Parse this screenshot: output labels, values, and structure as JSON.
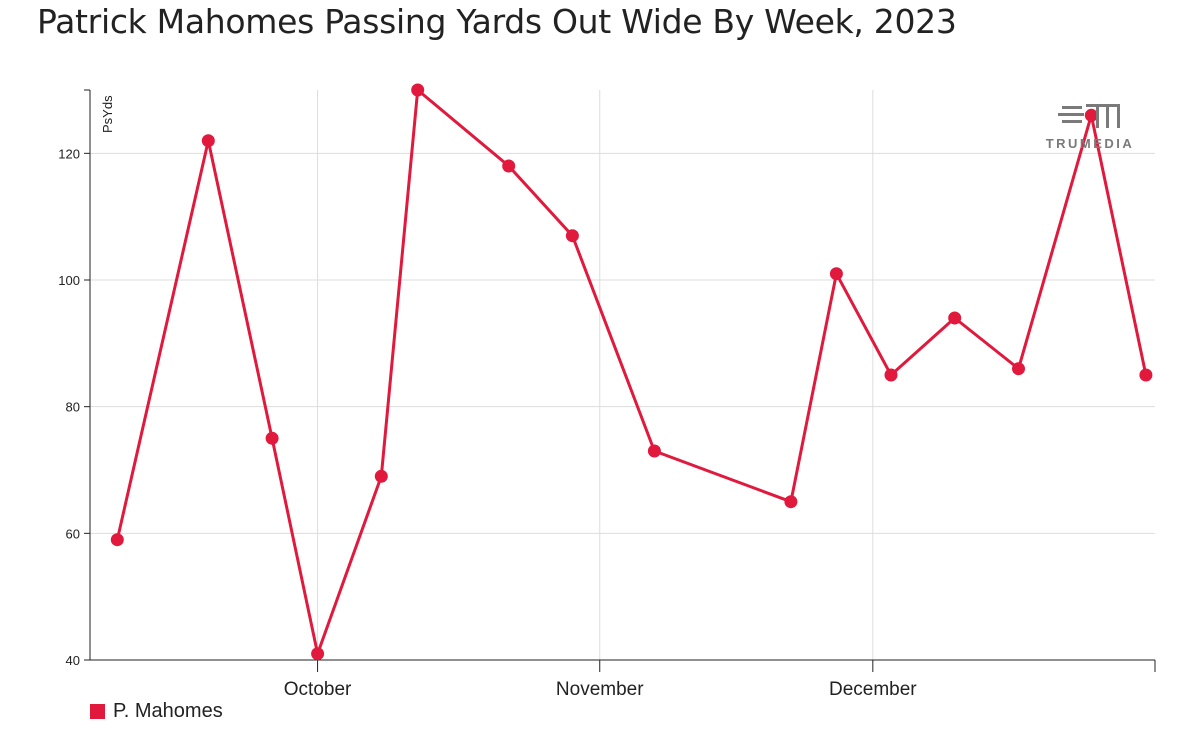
{
  "title": "Patrick Mahomes Passing Yards Out Wide By Week, 2023",
  "logo": {
    "text": "TRUMEDIA",
    "icon": "trumedia-logo-icon"
  },
  "legend": {
    "label": "P. Mahomes",
    "color": "#e0193d"
  },
  "colors": {
    "line": "#e0193d",
    "grid": "#dddddd",
    "axis": "#222222"
  },
  "chart_data": {
    "type": "line",
    "title": "Patrick Mahomes Passing Yards Out Wide By Week, 2023",
    "ylabel": "PsYds",
    "xlabel": "",
    "ylim": [
      40,
      130
    ],
    "xlim": [
      "2023-09-06",
      "2024-01-01"
    ],
    "yticks": [
      40,
      60,
      80,
      100,
      120
    ],
    "xticks": [
      {
        "label": "October",
        "date": "2023-10-01"
      },
      {
        "label": "November",
        "date": "2023-11-01"
      },
      {
        "label": "December",
        "date": "2023-12-01"
      }
    ],
    "grid": true,
    "legend_position": "bottom-left",
    "series": [
      {
        "name": "P. Mahomes",
        "x": [
          "2023-09-09",
          "2023-09-19",
          "2023-09-26",
          "2023-10-01",
          "2023-10-08",
          "2023-10-12",
          "2023-10-22",
          "2023-10-29",
          "2023-11-07",
          "2023-11-22",
          "2023-11-27",
          "2023-12-03",
          "2023-12-10",
          "2023-12-17",
          "2023-12-25",
          "2023-12-31"
        ],
        "values": [
          59,
          122,
          75,
          41,
          69,
          130,
          118,
          107,
          73,
          65,
          101,
          85,
          94,
          86,
          126,
          85
        ]
      }
    ]
  }
}
